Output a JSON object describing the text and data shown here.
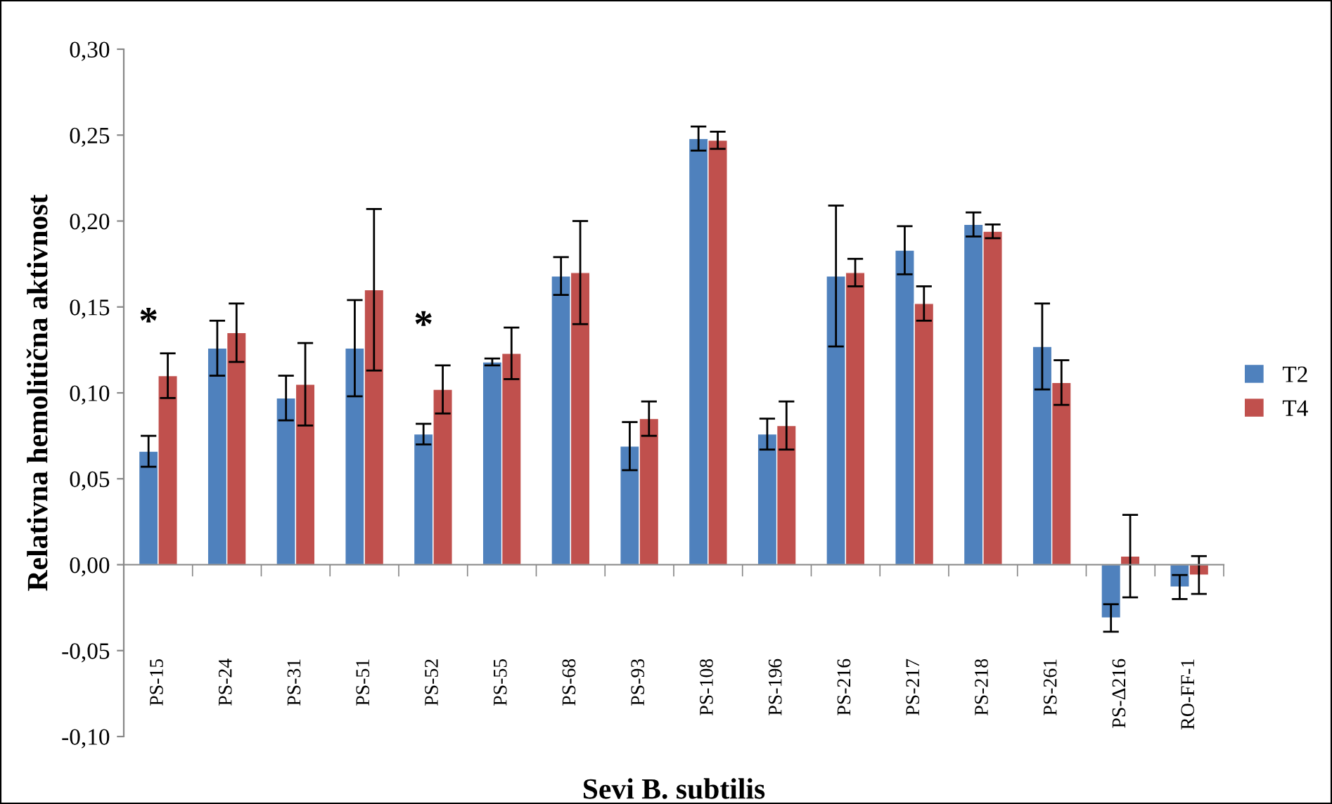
{
  "chart_data": {
    "type": "bar",
    "xlabel": "Sevi B. subtilis",
    "ylabel": "Relativna hemolitična aktivnost",
    "categories": [
      "PS-15",
      "PS-24",
      "PS-31",
      "PS-51",
      "PS-52",
      "PS-55",
      "PS-68",
      "PS-93",
      "PS-108",
      "PS-196",
      "PS-216",
      "PS-217",
      "PS-218",
      "PS-261",
      "PS-Δ216",
      "RO-FF-1"
    ],
    "series": [
      {
        "name": "T2",
        "color": "#4f81bd",
        "values": [
          0.066,
          0.126,
          0.097,
          0.126,
          0.076,
          0.118,
          0.168,
          0.069,
          0.248,
          0.076,
          0.168,
          0.183,
          0.198,
          0.127,
          -0.031,
          -0.013
        ],
        "errors": [
          0.009,
          0.016,
          0.013,
          0.028,
          0.006,
          0.002,
          0.011,
          0.014,
          0.007,
          0.009,
          0.041,
          0.014,
          0.007,
          0.025,
          0.008,
          0.007
        ]
      },
      {
        "name": "T4",
        "color": "#c0504d",
        "values": [
          0.11,
          0.135,
          0.105,
          0.16,
          0.102,
          0.123,
          0.17,
          0.085,
          0.247,
          0.081,
          0.17,
          0.152,
          0.194,
          0.106,
          0.005,
          -0.006
        ],
        "errors": [
          0.013,
          0.017,
          0.024,
          0.047,
          0.014,
          0.015,
          0.03,
          0.01,
          0.005,
          0.014,
          0.008,
          0.01,
          0.004,
          0.013,
          0.024,
          0.011
        ]
      }
    ],
    "ylim": [
      -0.1,
      0.3
    ],
    "yticks": [
      {
        "value": -0.1,
        "label": "-0,10"
      },
      {
        "value": -0.05,
        "label": "-0,05"
      },
      {
        "value": 0,
        "label": "0,00"
      },
      {
        "value": 0.05,
        "label": "0,05"
      },
      {
        "value": 0.1,
        "label": "0,10"
      },
      {
        "value": 0.15,
        "label": "0,15"
      },
      {
        "value": 0.2,
        "label": "0,20"
      },
      {
        "value": 0.25,
        "label": "0,25"
      },
      {
        "value": 0.3,
        "label": "0,30"
      }
    ],
    "annotations": [
      "*",
      "*"
    ],
    "legend": "right"
  }
}
